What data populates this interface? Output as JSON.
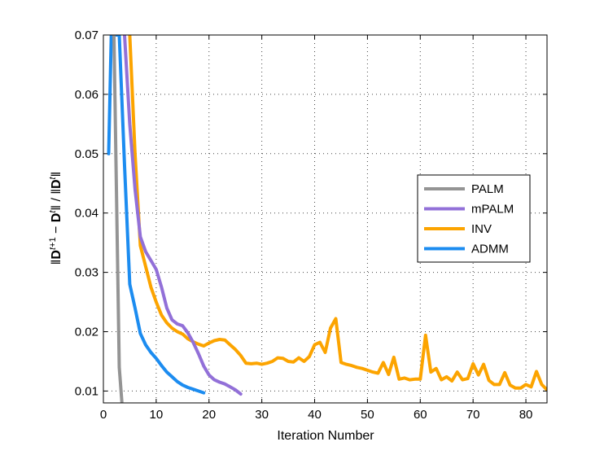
{
  "chart_data": {
    "type": "line",
    "title": "",
    "xlabel": "Iteration Number",
    "ylabel": "||D^{t+1} − D^t|| / ||D^t||",
    "xlim": [
      0,
      84
    ],
    "ylim": [
      0.008,
      0.07
    ],
    "x_ticks": [
      0,
      10,
      20,
      30,
      40,
      50,
      60,
      70,
      80
    ],
    "x_tick_labels": [
      "0",
      "10",
      "20",
      "30",
      "40",
      "50",
      "60",
      "70",
      "80"
    ],
    "y_ticks": [
      0.01,
      0.02,
      0.03,
      0.04,
      0.05,
      0.06,
      0.07
    ],
    "y_tick_labels": [
      "0.01",
      "0.02",
      "0.03",
      "0.04",
      "0.05",
      "0.06",
      "0.07"
    ],
    "grid": true,
    "legend_position": "right",
    "series": [
      {
        "name": "PALM",
        "color": "#949494",
        "x": [
          2,
          3,
          3.5
        ],
        "y": [
          0.07,
          0.014,
          0.0082
        ]
      },
      {
        "name": "mPALM",
        "color": "#9270d8",
        "x": [
          4,
          5,
          6,
          7,
          8,
          9,
          10,
          11,
          12,
          13,
          14,
          15,
          16,
          17,
          18,
          19,
          20,
          21,
          22,
          23,
          24,
          25,
          26
        ],
        "y": [
          0.07,
          0.055,
          0.044,
          0.036,
          0.0335,
          0.032,
          0.0305,
          0.0275,
          0.024,
          0.022,
          0.0213,
          0.021,
          0.0198,
          0.0182,
          0.0163,
          0.0142,
          0.0127,
          0.0119,
          0.0115,
          0.0112,
          0.0107,
          0.0102,
          0.0095
        ]
      },
      {
        "name": "INV",
        "color": "#fca400",
        "x": [
          5,
          6,
          7,
          8,
          9,
          10,
          11,
          12,
          13,
          14,
          15,
          16,
          17,
          18,
          19,
          20,
          21,
          22,
          23,
          24,
          25,
          26,
          27,
          28,
          29,
          30,
          31,
          32,
          33,
          34,
          35,
          36,
          37,
          38,
          39,
          40,
          41,
          42,
          43,
          44,
          45,
          46,
          47,
          48,
          49,
          50,
          51,
          52,
          53,
          54,
          55,
          56,
          57,
          58,
          59,
          60,
          61,
          62,
          63,
          64,
          65,
          66,
          67,
          68,
          69,
          70,
          71,
          72,
          73,
          74,
          75,
          76,
          77,
          78,
          79,
          80,
          81,
          82,
          83,
          84
        ],
        "y": [
          0.07,
          0.05,
          0.0345,
          0.031,
          0.0275,
          0.025,
          0.0228,
          0.0215,
          0.0206,
          0.02,
          0.0196,
          0.0188,
          0.0183,
          0.0179,
          0.0176,
          0.0181,
          0.0185,
          0.0187,
          0.0186,
          0.0178,
          0.017,
          0.016,
          0.0147,
          0.0146,
          0.0147,
          0.0145,
          0.0147,
          0.015,
          0.0156,
          0.0155,
          0.015,
          0.0149,
          0.0156,
          0.015,
          0.0158,
          0.0178,
          0.0182,
          0.0165,
          0.0206,
          0.0222,
          0.0148,
          0.0145,
          0.0143,
          0.014,
          0.0138,
          0.0135,
          0.0132,
          0.013,
          0.0148,
          0.0128,
          0.0157,
          0.012,
          0.0122,
          0.0119,
          0.012,
          0.012,
          0.0194,
          0.0132,
          0.0138,
          0.0119,
          0.0124,
          0.0117,
          0.0132,
          0.0119,
          0.0121,
          0.0146,
          0.0127,
          0.0145,
          0.0118,
          0.0111,
          0.0111,
          0.0131,
          0.011,
          0.0105,
          0.0105,
          0.0111,
          0.0107,
          0.0133,
          0.0111,
          0.0102
        ]
      },
      {
        "name": "ADMM",
        "color": "#1c8cf0",
        "x": [
          1,
          1.5,
          2,
          3,
          4,
          5,
          6,
          7,
          8,
          9,
          10,
          11,
          12,
          13,
          14,
          15,
          16,
          17,
          18,
          19
        ],
        "y": [
          0.05,
          0.07,
          0.07,
          0.07,
          0.048,
          0.028,
          0.024,
          0.0197,
          0.0178,
          0.0165,
          0.0155,
          0.0143,
          0.0132,
          0.0124,
          0.0116,
          0.011,
          0.0106,
          0.0103,
          0.01,
          0.0097
        ]
      }
    ]
  }
}
